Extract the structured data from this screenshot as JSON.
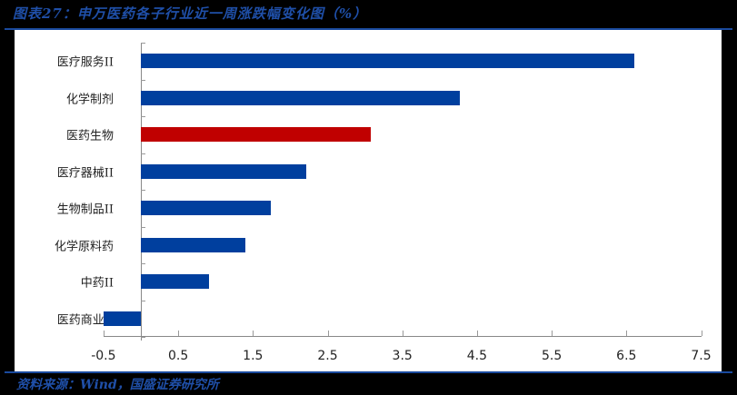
{
  "header": {
    "title": "图表27：申万医药各子行业近一周涨跌幅变化图（%）"
  },
  "footer": {
    "source": "资料来源：Wind，国盛证券研究所"
  },
  "colors": {
    "default_bar": "#003f9e",
    "highlight_bar": "#c00000",
    "title": "#1f4fa8",
    "rule": "#1a4a9e"
  },
  "chart_data": {
    "type": "bar",
    "orientation": "horizontal",
    "title": "图表27：申万医药各子行业近一周涨跌幅变化图（%）",
    "xlabel": "",
    "ylabel": "",
    "categories": [
      "医疗服务II",
      "化学制剂",
      "医药生物",
      "医疗器械II",
      "生物制品II",
      "化学原料药",
      "中药II",
      "医药商业II"
    ],
    "values": [
      6.6,
      4.27,
      3.08,
      2.21,
      1.74,
      1.4,
      0.91,
      -0.5
    ],
    "highlight": "医药生物",
    "xlim": [
      -0.5,
      7.5
    ],
    "xticks": [
      "-0.5",
      "0.5",
      "1.5",
      "2.5",
      "3.5",
      "4.5",
      "5.5",
      "6.5",
      "7.5"
    ],
    "grid": false,
    "legend": null,
    "source": "资料来源：Wind，国盛证券研究所"
  }
}
